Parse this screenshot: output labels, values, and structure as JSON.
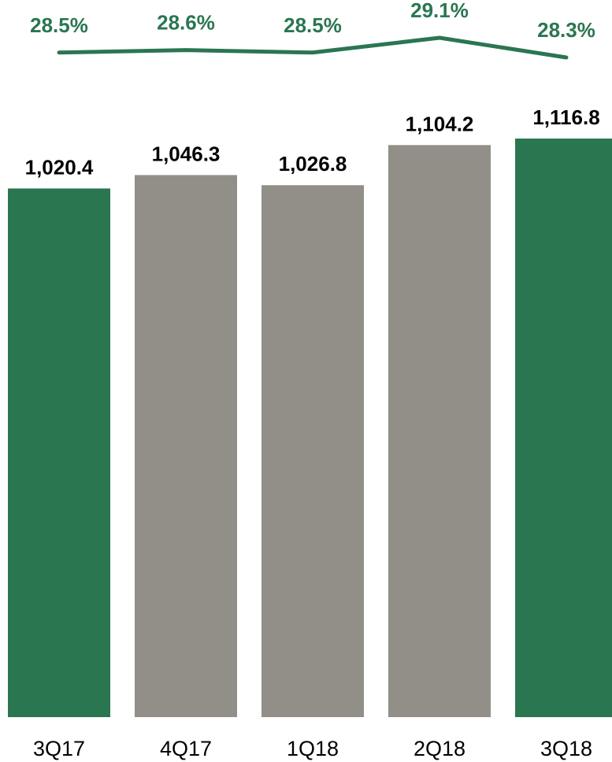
{
  "chart_data": {
    "type": "bar",
    "categories": [
      "3Q17",
      "4Q17",
      "1Q18",
      "2Q18",
      "3Q18"
    ],
    "values": [
      1020.4,
      1046.3,
      1026.8,
      1104.2,
      1116.8
    ],
    "value_labels": [
      "1,020.4",
      "1,046.3",
      "1,026.8",
      "1,104.2",
      "1,116.8"
    ],
    "bar_colors": [
      "#2a7650",
      "#918f87",
      "#918f87",
      "#918f87",
      "#2a7650"
    ],
    "line_series": {
      "type": "line",
      "values": [
        28.5,
        28.6,
        28.5,
        29.1,
        28.3
      ],
      "labels": [
        "28.5%",
        "28.6%",
        "28.5%",
        "29.1%",
        "28.3%"
      ],
      "color": "#2a7650"
    },
    "ylim": [
      0,
      1116.8
    ],
    "grid": false,
    "legend": "none",
    "title": "",
    "xlabel": "",
    "ylabel": ""
  }
}
